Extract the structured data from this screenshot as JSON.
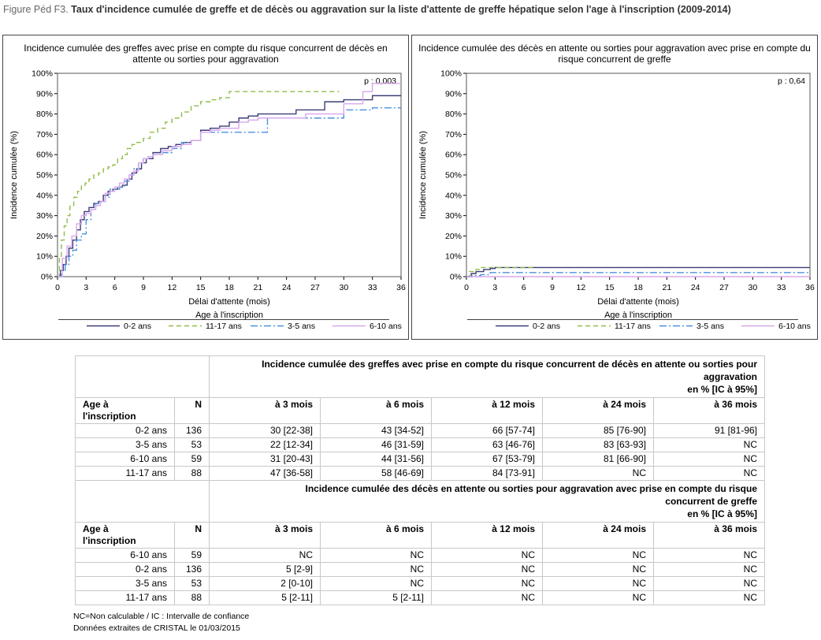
{
  "figure": {
    "prefix": "Figure Péd F3.",
    "title": "Taux d'incidence cumulée de greffe et de décès ou aggravation sur la liste d'attente de greffe hépatique selon l'age à l'inscription (2009-2014)"
  },
  "chart_data": [
    {
      "type": "line",
      "title": "Incidence cumulée des greffes avec prise en compte du risque concurrent de décès en attente ou sorties pour aggravation",
      "xlabel": "Délai d'attente (mois)",
      "ylabel": "Incidence cumulée (%)",
      "xlim": [
        0,
        36
      ],
      "ylim": [
        0,
        100
      ],
      "xticks": [
        "0",
        "3",
        "6",
        "9",
        "12",
        "15",
        "18",
        "21",
        "24",
        "27",
        "30",
        "33",
        "36"
      ],
      "yticks": [
        "0%",
        "10%",
        "20%",
        "30%",
        "40%",
        "50%",
        "60%",
        "70%",
        "80%",
        "90%",
        "100%"
      ],
      "annotation": "p : 0,003",
      "legend_title": "Age à l'inscription",
      "legend_position": "bottom",
      "series": [
        {
          "name": "0-2 ans",
          "color": "#3c3c78",
          "dash": "",
          "step": true,
          "x": [
            0,
            0.3,
            0.6,
            0.9,
            1.2,
            1.6,
            2,
            2.4,
            2.8,
            3.3,
            3.8,
            4.3,
            4.8,
            5.3,
            5.8,
            6.3,
            6.8,
            7.3,
            7.8,
            8.3,
            8.8,
            9.3,
            10,
            10.8,
            11.6,
            12.4,
            13.2,
            14,
            15,
            16,
            17,
            18,
            19,
            20,
            21,
            22,
            23,
            24,
            25,
            26,
            27,
            28,
            29,
            30,
            31,
            32,
            33,
            34,
            35,
            36
          ],
          "y": [
            0,
            3,
            6,
            10,
            14,
            18,
            23,
            28,
            32,
            34,
            36,
            37,
            40,
            42,
            43,
            44,
            45,
            48,
            51,
            53,
            56,
            58,
            61,
            63,
            64,
            65,
            66,
            67,
            72,
            73,
            74,
            76,
            78,
            79,
            80,
            80,
            80,
            80,
            82,
            82,
            82,
            86,
            86,
            87,
            87,
            87,
            89,
            89,
            89,
            89
          ]
        },
        {
          "name": "11-17 ans",
          "color": "#8fbc48",
          "dash": "6,4",
          "step": true,
          "x": [
            0,
            0.2,
            0.4,
            0.7,
            1,
            1.3,
            1.7,
            2.1,
            2.5,
            2.9,
            3.3,
            3.8,
            4.3,
            4.8,
            5.3,
            5.8,
            6.3,
            6.8,
            7.3,
            7.8,
            8.3,
            9,
            9.7,
            10.5,
            11.3,
            12,
            13,
            14,
            15,
            16,
            17,
            18,
            19,
            20,
            21,
            24,
            27,
            29.5
          ],
          "y": [
            0,
            10,
            18,
            25,
            30,
            35,
            39,
            42,
            45,
            46,
            48,
            50,
            51,
            53,
            54,
            55,
            58,
            60,
            63,
            65,
            66,
            68,
            71,
            73,
            76,
            78,
            81,
            84,
            86,
            87,
            88,
            91,
            91,
            91,
            91,
            91,
            91,
            91
          ]
        },
        {
          "name": "3-5 ans",
          "color": "#4a90e0",
          "dash": "9,3,2,3",
          "step": true,
          "x": [
            0,
            0.4,
            0.8,
            1.2,
            1.6,
            2,
            2.5,
            3,
            3.5,
            4,
            4.5,
            5,
            5.5,
            6,
            6.5,
            7,
            7.5,
            8,
            8.5,
            9,
            9.5,
            10,
            11,
            12,
            13,
            14,
            15,
            16,
            17,
            18,
            19,
            20,
            21,
            22,
            23,
            24,
            25,
            26,
            27,
            28,
            29,
            30,
            31,
            32,
            33,
            34,
            35,
            36
          ],
          "y": [
            0,
            3,
            6,
            10,
            13,
            18,
            21,
            28,
            33,
            36,
            37,
            39,
            43,
            43,
            44,
            47,
            50,
            53,
            56,
            58,
            59,
            60,
            61,
            63,
            66,
            67,
            71,
            71,
            71,
            71,
            71,
            71,
            71,
            78,
            78,
            78,
            78,
            78,
            78,
            78,
            78,
            82,
            82,
            82,
            83,
            83,
            83,
            83
          ]
        },
        {
          "name": "6-10 ans",
          "color": "#d8a8ec",
          "dash": "",
          "step": true,
          "x": [
            0,
            0.5,
            1,
            1.5,
            2,
            2.5,
            3,
            3.5,
            4,
            4.5,
            5,
            5.5,
            6,
            6.5,
            7,
            7.5,
            8,
            8.5,
            9,
            9.5,
            10,
            11,
            12,
            13,
            14,
            15,
            16,
            17,
            18,
            19,
            20,
            21,
            22,
            23,
            24,
            25,
            26,
            27,
            28,
            29,
            30,
            31,
            32,
            33,
            34,
            35,
            36
          ],
          "y": [
            0,
            9,
            15,
            20,
            26,
            30,
            31,
            33,
            35,
            37,
            41,
            42,
            44,
            46,
            48,
            50,
            52,
            56,
            58,
            59,
            60,
            62,
            64,
            65,
            67,
            71,
            72,
            73,
            73,
            76,
            77,
            78,
            78,
            78,
            78,
            78,
            80,
            80,
            80,
            80,
            85,
            85,
            91,
            95,
            95,
            95,
            95
          ]
        }
      ]
    },
    {
      "type": "line",
      "title": "Incidence cumulée des décès en attente ou sorties pour aggravation avec prise en compte du risque concurrent de greffe",
      "xlabel": "Délai d'attente (mois)",
      "ylabel": "Incidence cumulée (%)",
      "xlim": [
        0,
        36
      ],
      "ylim": [
        0,
        100
      ],
      "xticks": [
        "0",
        "3",
        "6",
        "9",
        "12",
        "15",
        "18",
        "21",
        "24",
        "27",
        "30",
        "33",
        "36"
      ],
      "yticks": [
        "0%",
        "10%",
        "20%",
        "30%",
        "40%",
        "50%",
        "60%",
        "70%",
        "80%",
        "90%",
        "100%"
      ],
      "annotation": "p : 0,64",
      "legend_title": "Age à l'inscription",
      "legend_position": "bottom",
      "series": [
        {
          "name": "0-2 ans",
          "color": "#3c3c78",
          "dash": "",
          "step": true,
          "x": [
            0,
            0.5,
            1,
            1.8,
            2.5,
            3,
            36
          ],
          "y": [
            0,
            1.5,
            2.5,
            3.5,
            4,
            4.5,
            4.5
          ]
        },
        {
          "name": "11-17 ans",
          "color": "#8fbc48",
          "dash": "6,4",
          "step": true,
          "x": [
            0,
            0.3,
            0.8,
            1.5,
            7
          ],
          "y": [
            0,
            2.5,
            3.5,
            4.5,
            4.5
          ]
        },
        {
          "name": "3-5 ans",
          "color": "#4a90e0",
          "dash": "9,3,2,3",
          "step": true,
          "x": [
            0,
            0.6,
            1.5,
            2.5,
            36
          ],
          "y": [
            0,
            0.5,
            1,
            2,
            2
          ]
        },
        {
          "name": "6-10 ans",
          "color": "#d8a8ec",
          "dash": "",
          "step": true,
          "x": [
            0,
            36
          ],
          "y": [
            0,
            0
          ]
        }
      ]
    }
  ],
  "table1": {
    "group_header": [
      "Incidence cumulée des greffes avec prise en compte du risque concurrent de décès en attente ou sorties pour",
      "aggravation",
      "en % [IC à 95%]"
    ],
    "col_age": [
      "Age à",
      "l'inscription"
    ],
    "col_n": "N",
    "cols": [
      "à 3 mois",
      "à 6 mois",
      "à 12 mois",
      "à 24 mois",
      "à 36 mois"
    ],
    "rows": [
      [
        "0-2 ans",
        "136",
        "30 [22-38]",
        "43 [34-52]",
        "66 [57-74]",
        "85 [76-90]",
        "91 [81-96]"
      ],
      [
        "3-5 ans",
        "53",
        "22 [12-34]",
        "46 [31-59]",
        "63 [46-76]",
        "83 [63-93]",
        "NC"
      ],
      [
        "6-10 ans",
        "59",
        "31 [20-43]",
        "44 [31-56]",
        "67 [53-79]",
        "81 [66-90]",
        "NC"
      ],
      [
        "11-17 ans",
        "88",
        "47 [36-58]",
        "58 [46-69]",
        "84 [73-91]",
        "NC",
        "NC"
      ]
    ]
  },
  "table2": {
    "group_header": [
      "Incidence cumulée des décès en attente ou sorties pour aggravation avec prise en compte du risque",
      "concurrent de greffe",
      "en % [IC à 95%]"
    ],
    "col_age": [
      "Age à",
      "l'inscription"
    ],
    "col_n": "N",
    "cols": [
      "à 3 mois",
      "à 6 mois",
      "à 12 mois",
      "à 24 mois",
      "à 36 mois"
    ],
    "rows": [
      [
        "6-10 ans",
        "59",
        "NC",
        "NC",
        "NC",
        "NC",
        "NC"
      ],
      [
        "0-2 ans",
        "136",
        "5 [2-9]",
        "NC",
        "NC",
        "NC",
        "NC"
      ],
      [
        "3-5 ans",
        "53",
        "2 [0-10]",
        "NC",
        "NC",
        "NC",
        "NC"
      ],
      [
        "11-17 ans",
        "88",
        "5 [2-11]",
        "5 [2-11]",
        "NC",
        "NC",
        "NC"
      ]
    ]
  },
  "notes": [
    "NC=Non calculable / IC : Intervalle de confiance",
    "Données extraites de CRISTAL le 01/03/2015"
  ]
}
